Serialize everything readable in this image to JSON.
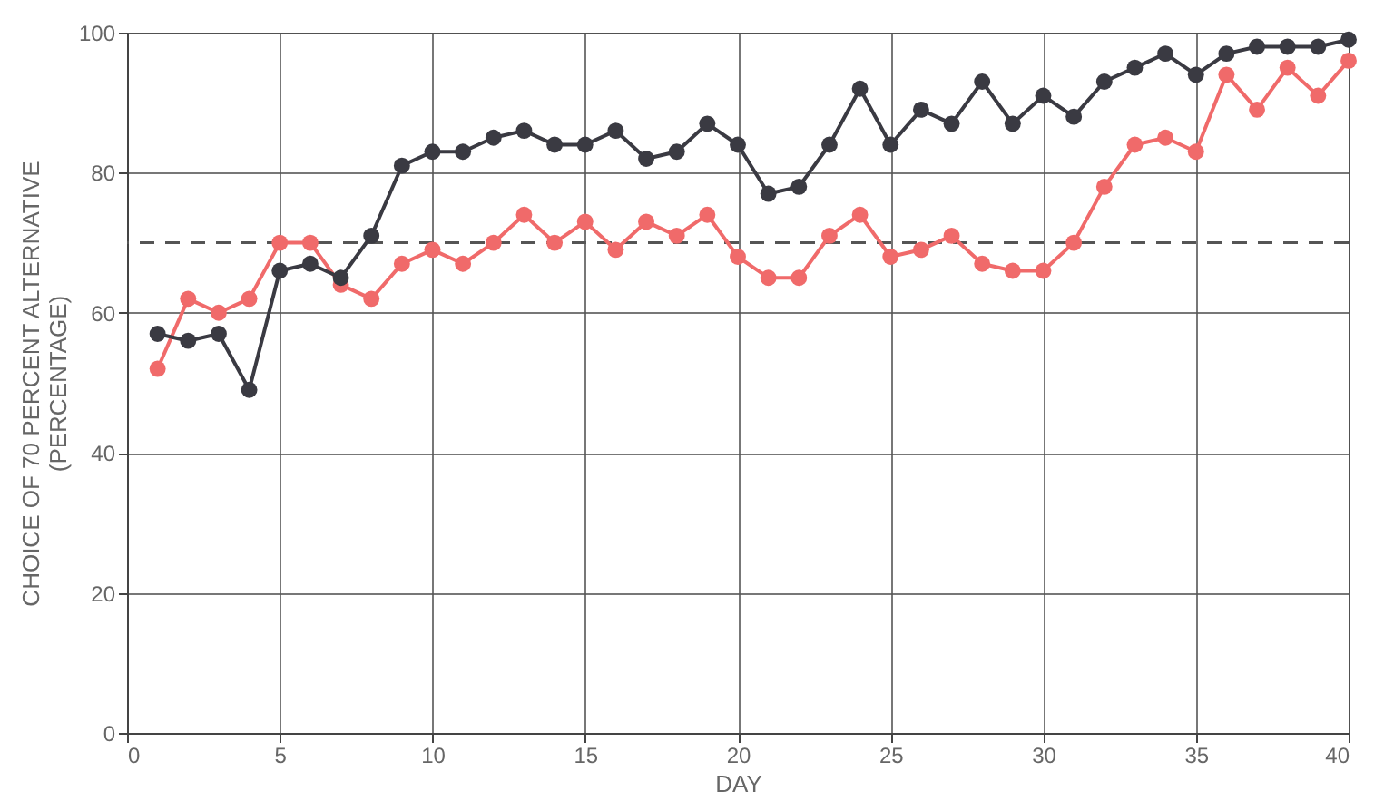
{
  "chart_data": {
    "type": "line",
    "xlabel": "DAY",
    "ylabel": [
      "CHOICE OF 70 PERCENT ALTERNATIVE",
      "(PERCENTAGE)"
    ],
    "x": [
      1,
      2,
      3,
      4,
      5,
      6,
      7,
      8,
      9,
      10,
      11,
      12,
      13,
      14,
      15,
      16,
      17,
      18,
      19,
      20,
      21,
      22,
      23,
      24,
      25,
      26,
      27,
      28,
      29,
      30,
      31,
      32,
      33,
      34,
      35,
      36,
      37,
      38,
      39,
      40
    ],
    "series": [
      {
        "color": "#f06a6a",
        "values": [
          52,
          62,
          60,
          62,
          70,
          70,
          64,
          62,
          67,
          69,
          67,
          70,
          74,
          70,
          73,
          69,
          73,
          71,
          74,
          68,
          65,
          65,
          71,
          74,
          68,
          69,
          71,
          67,
          66,
          66,
          70,
          78,
          84,
          85,
          83,
          94,
          89,
          95,
          91,
          96
        ]
      },
      {
        "color": "#3a3a42",
        "values": [
          57,
          56,
          57,
          49,
          66,
          67,
          65,
          71,
          81,
          83,
          83,
          85,
          86,
          84,
          84,
          86,
          82,
          83,
          87,
          84,
          77,
          78,
          84,
          92,
          84,
          89,
          87,
          93,
          87,
          91,
          88,
          93,
          95,
          97,
          94,
          97,
          98,
          98,
          98,
          99
        ]
      }
    ],
    "xlim": [
      0,
      40
    ],
    "xticks": [
      0,
      5,
      10,
      15,
      20,
      25,
      30,
      35,
      40
    ],
    "ylim": [
      0,
      100
    ],
    "yticks": [
      0,
      20,
      40,
      60,
      80,
      100
    ],
    "grid": true,
    "marker": "circle",
    "line_style": "solid",
    "ref_lines": [
      {
        "axis": "y",
        "value": 70,
        "line_style": "dashed",
        "color": "#555555"
      }
    ]
  }
}
